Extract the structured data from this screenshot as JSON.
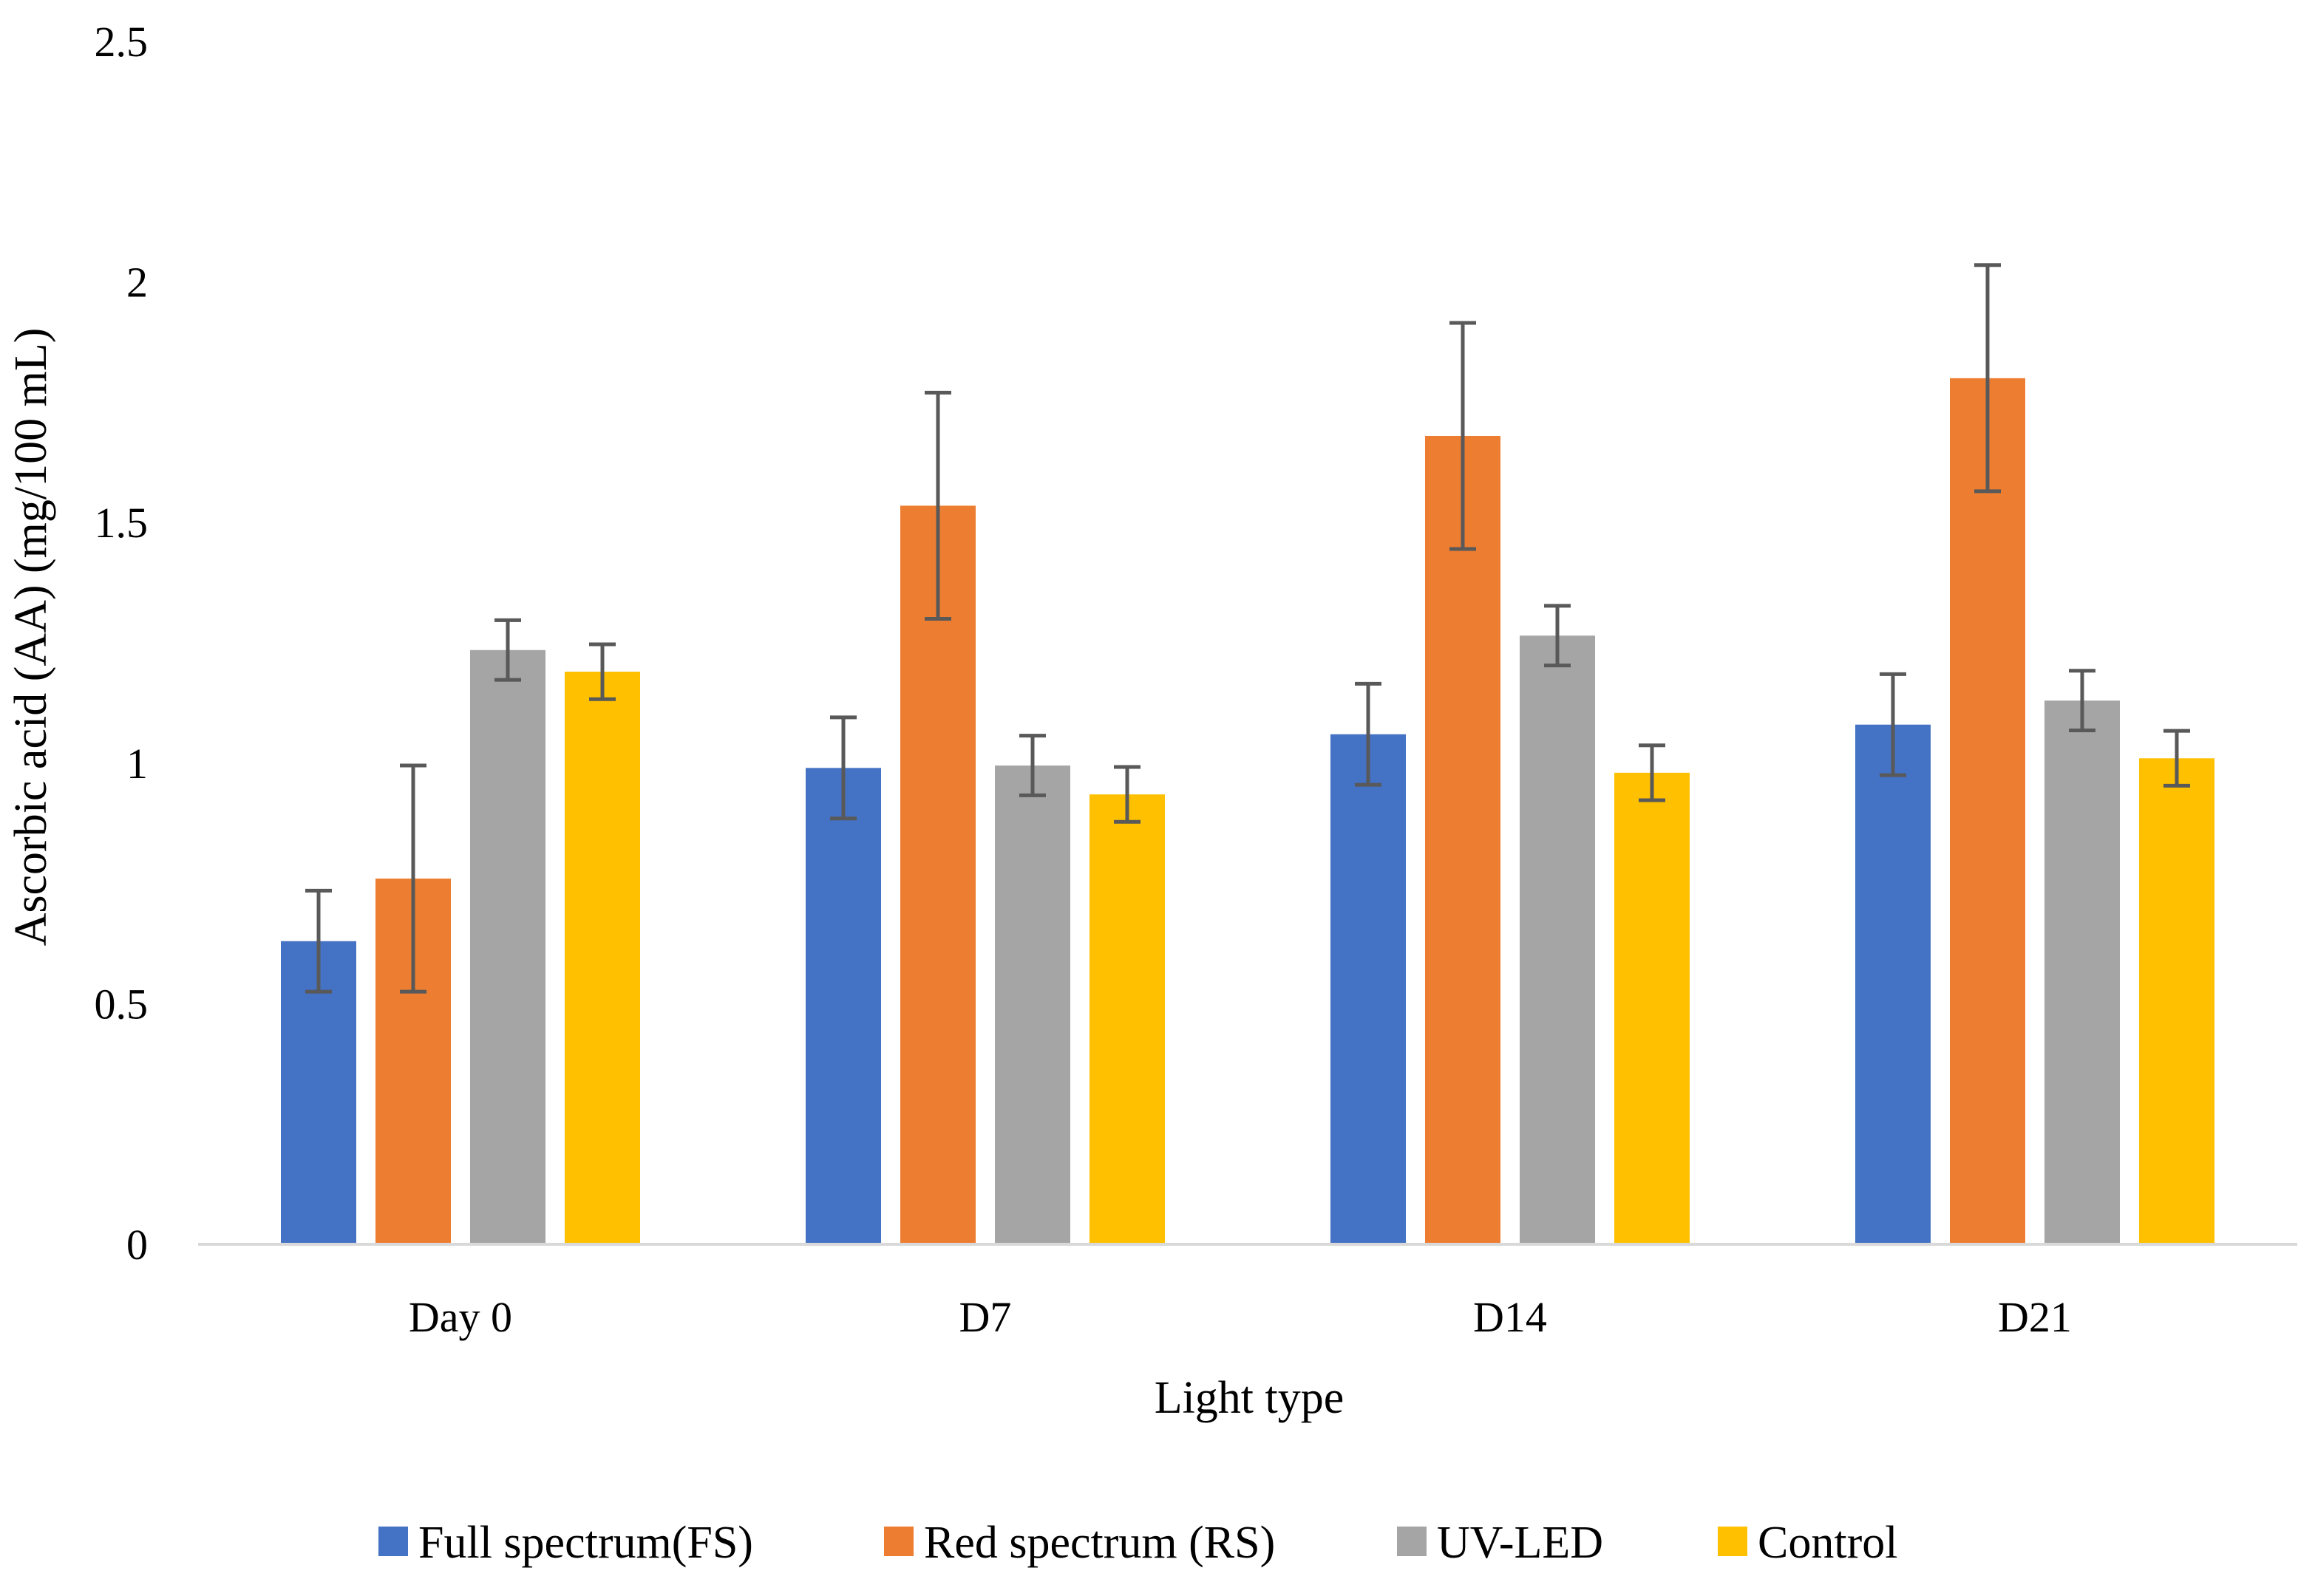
{
  "chart_data": {
    "type": "bar",
    "title": "",
    "xlabel": "Light type",
    "ylabel": "Ascorbic acid (AA) (mg/100 mL)",
    "ylim": [
      0,
      2.5
    ],
    "yticks": [
      "0",
      "0.5",
      "1",
      "1.5",
      "2",
      "2.5"
    ],
    "ytick_values": [
      0,
      0.5,
      1,
      1.5,
      2,
      2.5
    ],
    "grid": false,
    "legend_position": "bottom",
    "categories": [
      "Day 0",
      "D7",
      "D14",
      "D21"
    ],
    "series": [
      {
        "name": "Full spectrum(FS)",
        "color": "#4472C4",
        "values": [
          0.63,
          0.99,
          1.06,
          1.08
        ],
        "errors": [
          0.105,
          0.105,
          0.105,
          0.105
        ]
      },
      {
        "name": "Red spectrum (RS)",
        "color": "#ED7D31",
        "values": [
          0.76,
          1.535,
          1.68,
          1.8
        ],
        "errors": [
          0.235,
          0.235,
          0.235,
          0.235
        ]
      },
      {
        "name": "UV-LED",
        "color": "#A5A5A5",
        "values": [
          1.235,
          0.995,
          1.265,
          1.13
        ],
        "errors": [
          0.062,
          0.062,
          0.062,
          0.062
        ]
      },
      {
        "name": "Control",
        "color": "#FFC000",
        "values": [
          1.19,
          0.935,
          0.98,
          1.01
        ],
        "errors": [
          0.057,
          0.057,
          0.057,
          0.057
        ]
      }
    ],
    "axis_color": "#D9D9D9",
    "error_bar_color": "#595959"
  }
}
